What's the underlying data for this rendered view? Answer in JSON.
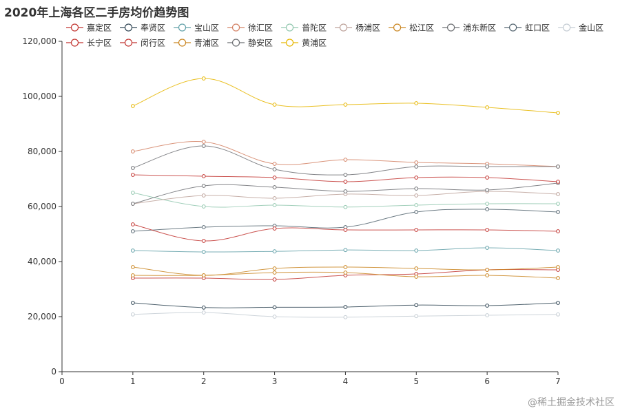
{
  "watermark": "@稀土掘金技术社区",
  "chart_data": {
    "type": "line",
    "title": "2020年上海各区二手房均价趋势图",
    "x": [
      1,
      2,
      3,
      4,
      5,
      6,
      7
    ],
    "xlim": [
      0,
      7
    ],
    "ylim": [
      0,
      120000
    ],
    "x_ticks": [
      "0",
      "1",
      "2",
      "3",
      "4",
      "5",
      "6",
      "7"
    ],
    "y_ticks": [
      "0",
      "20,000",
      "40,000",
      "60,000",
      "80,000",
      "100,000",
      "120,000"
    ],
    "grid": false,
    "legend_position": "top",
    "series": [
      {
        "name": "嘉定区",
        "color": "#c23531",
        "values": [
          34000,
          34000,
          33500,
          35000,
          35500,
          37000,
          37000
        ]
      },
      {
        "name": "奉贤区",
        "color": "#2f4554",
        "values": [
          25000,
          23300,
          23400,
          23500,
          24200,
          24000,
          25000
        ]
      },
      {
        "name": "宝山区",
        "color": "#61a0a8",
        "values": [
          44000,
          43500,
          43700,
          44200,
          44000,
          45000,
          44000
        ]
      },
      {
        "name": "徐汇区",
        "color": "#d48265",
        "values": [
          80000,
          83500,
          75500,
          77000,
          76000,
          75500,
          74500
        ]
      },
      {
        "name": "普陀区",
        "color": "#91c7ae",
        "values": [
          65000,
          60000,
          60500,
          59800,
          60500,
          61000,
          61000
        ]
      },
      {
        "name": "杨浦区",
        "color": "#bda29a",
        "values": [
          61000,
          64000,
          63000,
          64500,
          64000,
          65500,
          64500
        ]
      },
      {
        "name": "松江区",
        "color": "#ca8622",
        "values": [
          38000,
          35000,
          37500,
          38000,
          37500,
          37000,
          38000
        ]
      },
      {
        "name": "浦东新区",
        "color": "#6e7074",
        "values": [
          61000,
          67500,
          67000,
          65500,
          66500,
          66000,
          68500
        ]
      },
      {
        "name": "虹口区",
        "color": "#546570",
        "values": [
          51000,
          52500,
          53000,
          52500,
          58000,
          59000,
          58000
        ]
      },
      {
        "name": "金山区",
        "color": "#c4ccd3",
        "values": [
          20800,
          21500,
          20000,
          19800,
          20200,
          20500,
          20800
        ]
      },
      {
        "name": "长宁区",
        "color": "#c23531",
        "values": [
          71500,
          71000,
          70500,
          69000,
          70500,
          70500,
          69000
        ]
      },
      {
        "name": "闵行区",
        "color": "#c23531",
        "values": [
          53500,
          47500,
          52000,
          51500,
          51500,
          51500,
          51000
        ]
      },
      {
        "name": "青浦区",
        "color": "#ca8622",
        "values": [
          35000,
          35000,
          36000,
          36000,
          34500,
          35000,
          34000
        ]
      },
      {
        "name": "静安区",
        "color": "#6e7074",
        "values": [
          74000,
          82000,
          73500,
          71500,
          74500,
          74500,
          74500
        ]
      },
      {
        "name": "黄浦区",
        "color": "#e6b600",
        "values": [
          96500,
          106500,
          97000,
          97000,
          97500,
          96000,
          94000
        ]
      }
    ]
  }
}
